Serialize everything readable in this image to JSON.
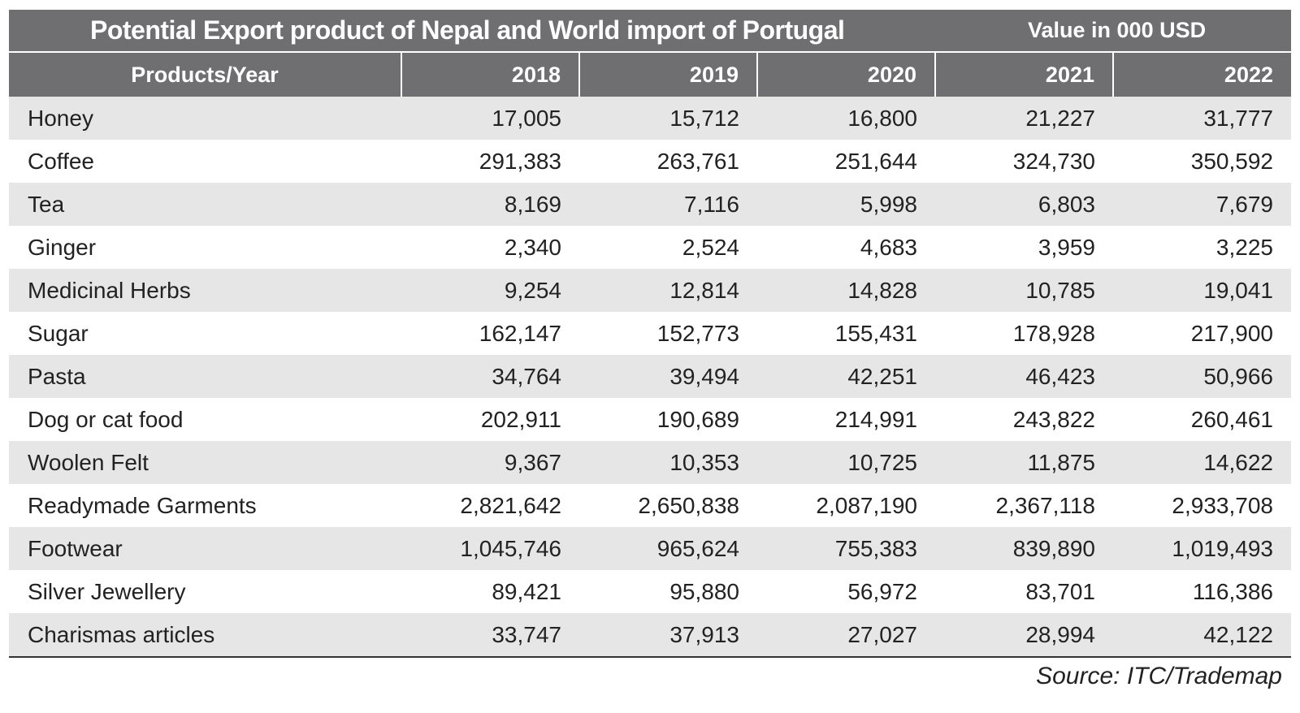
{
  "table": {
    "title": "Potential Export product of Nepal and World import of Portugal",
    "unit": "Value in 000 USD",
    "headers": [
      "Products/Year",
      "2018",
      "2019",
      "2020",
      "2021",
      "2022"
    ],
    "rows": [
      [
        "Honey",
        "17,005",
        "15,712",
        "16,800",
        "21,227",
        "31,777"
      ],
      [
        "Coffee",
        "291,383",
        "263,761",
        "251,644",
        "324,730",
        "350,592"
      ],
      [
        "Tea",
        "8,169",
        "7,116",
        "5,998",
        "6,803",
        "7,679"
      ],
      [
        "Ginger",
        "2,340",
        "2,524",
        "4,683",
        "3,959",
        "3,225"
      ],
      [
        "Medicinal Herbs",
        "9,254",
        "12,814",
        "14,828",
        "10,785",
        "19,041"
      ],
      [
        "Sugar",
        "162,147",
        "152,773",
        "155,431",
        "178,928",
        "217,900"
      ],
      [
        "Pasta",
        "34,764",
        "39,494",
        "42,251",
        "46,423",
        "50,966"
      ],
      [
        "Dog or cat food",
        "202,911",
        "190,689",
        "214,991",
        "243,822",
        "260,461"
      ],
      [
        "Woolen Felt",
        "9,367",
        "10,353",
        "10,725",
        "11,875",
        "14,622"
      ],
      [
        "Readymade Garments",
        "2,821,642",
        "2,650,838",
        "2,087,190",
        "2,367,118",
        "2,933,708"
      ],
      [
        "Footwear",
        "1,045,746",
        "965,624",
        "755,383",
        "839,890",
        "1,019,493"
      ],
      [
        "Silver Jewellery",
        "89,421",
        "95,880",
        "56,972",
        "83,701",
        "116,386"
      ],
      [
        "Charismas articles",
        "33,747",
        "37,913",
        "27,027",
        "28,994",
        "42,122"
      ]
    ],
    "source": "Source: ITC/Trademap"
  },
  "colors": {
    "header_bg": "#6f6f71",
    "header_text": "#ffffff",
    "row_alt_bg": "#e6e6e7",
    "row_bg": "#ffffff"
  }
}
